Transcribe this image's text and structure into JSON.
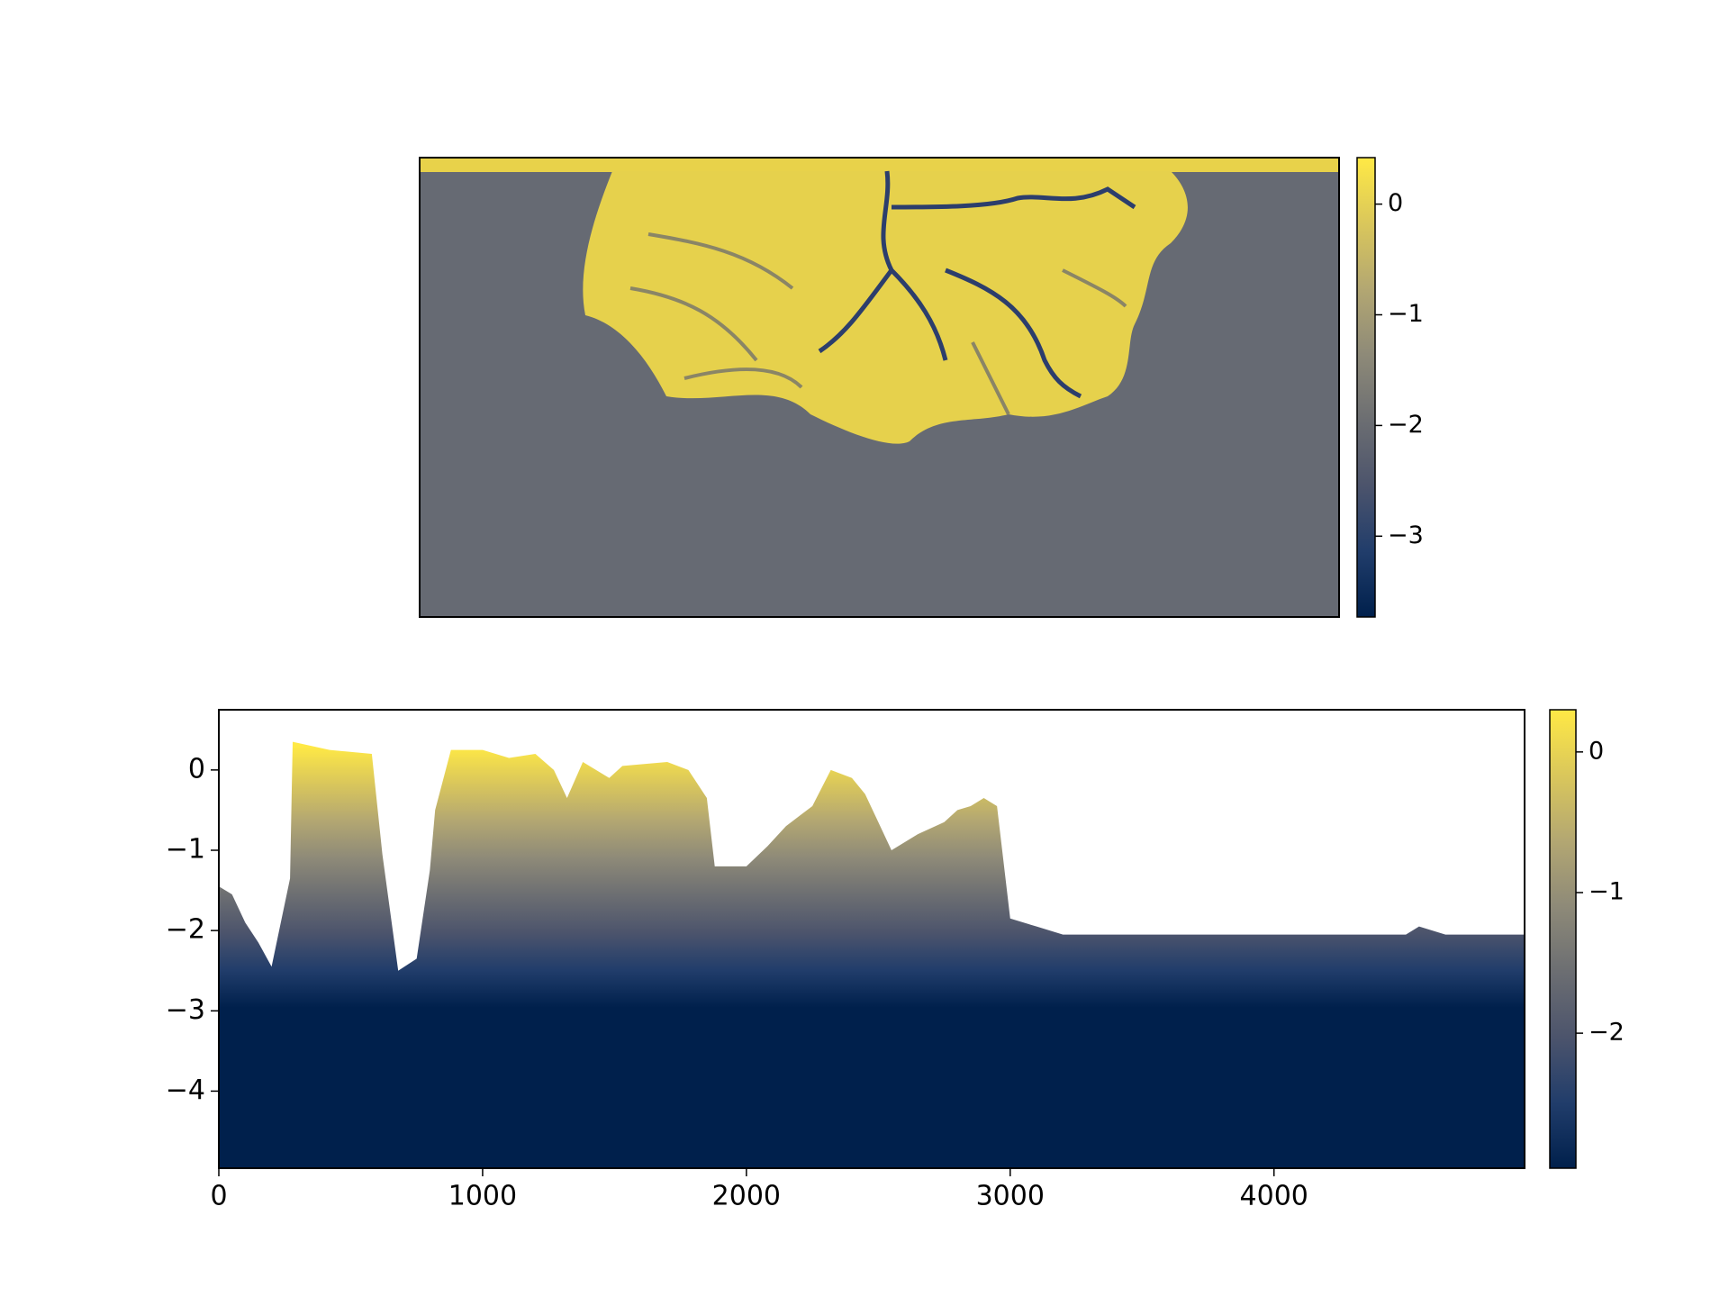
{
  "chart_data": [
    {
      "type": "image",
      "colormap": "cividis",
      "clim": [
        -3.73,
        0.42
      ],
      "cticks": [
        0,
        {
          "value": -1,
          "label": "−1"
        },
        {
          "value": -2,
          "label": "−2"
        },
        {
          "value": -3,
          "label": "−3"
        }
      ]
    },
    {
      "type": "section",
      "colormap": "cividis",
      "x": [
        0,
        50,
        100,
        150,
        200,
        270,
        280,
        420,
        580,
        620,
        680,
        750,
        800,
        820,
        880,
        1000,
        1100,
        1200,
        1270,
        1320,
        1380,
        1480,
        1530,
        1700,
        1780,
        1850,
        1880,
        2000,
        2080,
        2150,
        2250,
        2320,
        2400,
        2450,
        2500,
        2550,
        2650,
        2750,
        2800,
        2850,
        2900,
        2950,
        3000,
        3100,
        3200,
        4500,
        4550,
        4650,
        4950
      ],
      "values": [
        -1.45,
        -1.55,
        -1.9,
        -2.15,
        -2.45,
        -1.35,
        0.35,
        0.25,
        0.2,
        -1.05,
        -2.5,
        -2.35,
        -1.25,
        -0.5,
        0.25,
        0.25,
        0.15,
        0.2,
        0.0,
        -0.35,
        0.1,
        -0.1,
        0.05,
        0.1,
        0.0,
        -0.35,
        -1.2,
        -1.2,
        -0.95,
        -0.7,
        -0.45,
        0.0,
        -0.1,
        -0.3,
        -0.65,
        -1.0,
        -0.8,
        -0.65,
        -0.5,
        -0.45,
        -0.35,
        -0.45,
        -1.85,
        -1.95,
        -2.05,
        -2.05,
        -1.95,
        -2.05,
        -2.05
      ],
      "xlim": [
        0,
        4950
      ],
      "ylim": [
        -4.96,
        0.75
      ],
      "xticks": [
        0,
        1000,
        2000,
        3000,
        4000
      ],
      "yticks": [
        0,
        {
          "value": -1,
          "label": "−1"
        },
        {
          "value": -2,
          "label": "−2"
        },
        {
          "value": -3,
          "label": "−3"
        },
        {
          "value": -4,
          "label": "−4"
        }
      ],
      "clim": [
        -2.96,
        0.3
      ],
      "cticks": [
        0,
        {
          "value": -1,
          "label": "−1"
        },
        {
          "value": -2,
          "label": "−2"
        }
      ]
    }
  ]
}
